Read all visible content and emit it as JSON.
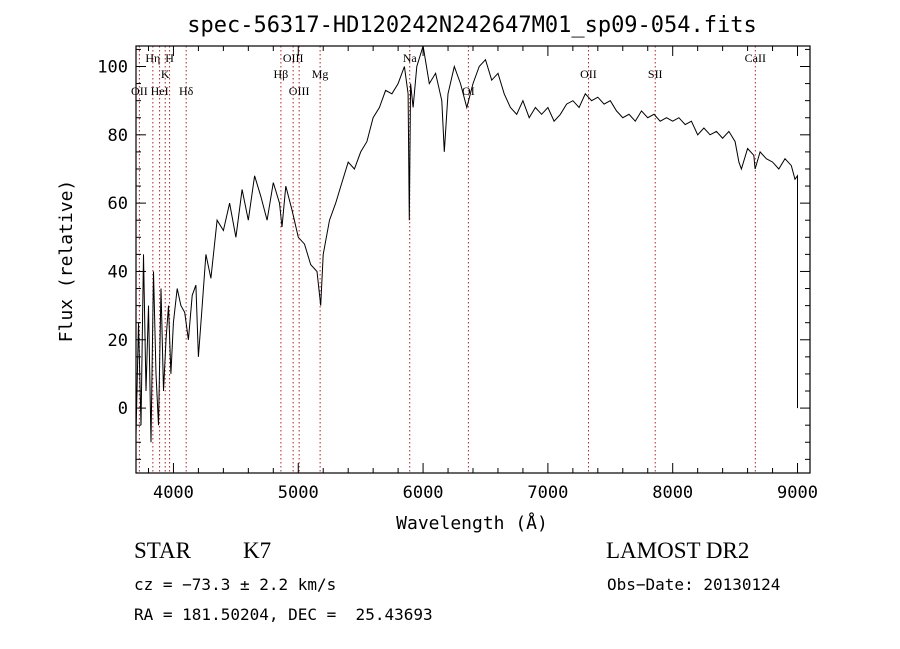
{
  "chart_data": {
    "type": "line",
    "title": "spec-56317-HD120242N242647M01_sp09-054.fits",
    "xlabel": "Wavelength (Å)",
    "ylabel": "Flux (relative)",
    "xlim": [
      3700,
      9100
    ],
    "ylim": [
      -19,
      106
    ],
    "xticks": [
      4000,
      5000,
      6000,
      7000,
      8000,
      9000
    ],
    "yticks": [
      0,
      20,
      40,
      60,
      80,
      100
    ],
    "grid": false,
    "series": [
      {
        "x": [
          3700,
          3720,
          3740,
          3760,
          3780,
          3800,
          3820,
          3840,
          3860,
          3880,
          3900,
          3920,
          3940,
          3960,
          3980,
          4000,
          4030,
          4060,
          4090,
          4120,
          4150,
          4180,
          4200,
          4230,
          4260,
          4300,
          4350,
          4400,
          4450,
          4500,
          4550,
          4600,
          4650,
          4700,
          4750,
          4800,
          4850,
          4870,
          4900,
          4950,
          5000,
          5050,
          5100,
          5150,
          5180,
          5200,
          5250,
          5300,
          5350,
          5400,
          5450,
          5500,
          5550,
          5600,
          5650,
          5700,
          5750,
          5800,
          5850,
          5880,
          5890,
          5900,
          5920,
          5950,
          6000,
          6050,
          6100,
          6150,
          6170,
          6200,
          6250,
          6300,
          6350,
          6400,
          6450,
          6500,
          6550,
          6600,
          6650,
          6700,
          6750,
          6800,
          6850,
          6900,
          6950,
          7000,
          7050,
          7100,
          7150,
          7200,
          7250,
          7300,
          7350,
          7400,
          7450,
          7500,
          7550,
          7600,
          7650,
          7700,
          7750,
          7800,
          7850,
          7900,
          7950,
          8000,
          8050,
          8100,
          8150,
          8200,
          8250,
          8300,
          8350,
          8400,
          8450,
          8500,
          8530,
          8550,
          8600,
          8650,
          8660,
          8700,
          8750,
          8800,
          8850,
          8900,
          8950,
          8980,
          9000,
          9000
        ],
        "y": [
          -8,
          25,
          -5,
          45,
          5,
          30,
          -10,
          40,
          10,
          -5,
          35,
          5,
          20,
          30,
          10,
          25,
          35,
          30,
          28,
          20,
          33,
          36,
          15,
          30,
          45,
          38,
          55,
          52,
          60,
          50,
          64,
          55,
          68,
          62,
          55,
          66,
          60,
          53,
          65,
          58,
          50,
          48,
          42,
          40,
          30,
          45,
          55,
          60,
          66,
          72,
          70,
          75,
          78,
          85,
          88,
          93,
          92,
          95,
          100,
          92,
          55,
          95,
          88,
          100,
          106,
          95,
          98,
          90,
          75,
          92,
          100,
          95,
          88,
          95,
          100,
          102,
          96,
          98,
          92,
          88,
          86,
          90,
          85,
          88,
          86,
          88,
          84,
          86,
          89,
          90,
          88,
          92,
          90,
          91,
          89,
          90,
          87,
          85,
          86,
          84,
          87,
          85,
          86,
          84,
          85,
          84,
          85,
          83,
          84,
          80,
          82,
          80,
          81,
          79,
          81,
          78,
          72,
          70,
          76,
          74,
          70,
          75,
          73,
          72,
          70,
          73,
          71,
          67,
          68,
          0
        ]
      }
    ],
    "line_markers": [
      {
        "label": "OII",
        "wavelength": 3727,
        "tier": 3
      },
      {
        "label": "Hη",
        "wavelength": 3835,
        "tier": 1
      },
      {
        "label": "HeI",
        "wavelength": 3889,
        "tier": 3
      },
      {
        "label": "K",
        "wavelength": 3934,
        "tier": 2
      },
      {
        "label": "H",
        "wavelength": 3969,
        "tier": 1
      },
      {
        "label": "Hδ",
        "wavelength": 4102,
        "tier": 3
      },
      {
        "label": "Hβ",
        "wavelength": 4861,
        "tier": 2
      },
      {
        "label": "OIII",
        "wavelength": 4959,
        "tier": 1
      },
      {
        "label": "OIII",
        "wavelength": 5007,
        "tier": 3
      },
      {
        "label": "Mg",
        "wavelength": 5175,
        "tier": 2
      },
      {
        "label": "Na",
        "wavelength": 5893,
        "tier": 1
      },
      {
        "label": "OI",
        "wavelength": 6363,
        "tier": 3
      },
      {
        "label": "OII",
        "wavelength": 7325,
        "tier": 2
      },
      {
        "label": "SII",
        "wavelength": 7860,
        "tier": 2
      },
      {
        "label": "CaII",
        "wavelength": 8662,
        "tier": 1
      }
    ]
  },
  "info": {
    "object_class": "STAR",
    "subclass": "K7",
    "survey": "LAMOST DR2",
    "cz": "cz = −73.3 ± 2.2 km/s",
    "obs_date": "Obs−Date: 20130124",
    "coords": "RA = 181.50204, DEC =  25.43693"
  }
}
